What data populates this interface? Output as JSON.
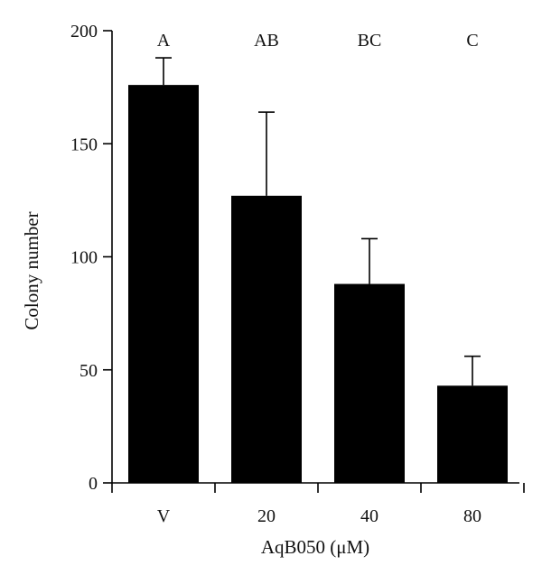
{
  "chart_data": {
    "type": "bar",
    "categories": [
      "V",
      "20",
      "40",
      "80"
    ],
    "values": [
      176,
      127,
      88,
      43
    ],
    "error_upper": [
      188,
      164,
      108,
      56
    ],
    "significance_letters": [
      "A",
      "AB",
      "BC",
      "C"
    ],
    "title": "",
    "xlabel": "AqB050 (μM)",
    "ylabel": "Colony number",
    "ylim": [
      0,
      200
    ],
    "yticks": [
      "0",
      "50",
      "100",
      "150",
      "200"
    ],
    "grid": false,
    "legend": "none",
    "bar_color": "#000000"
  }
}
